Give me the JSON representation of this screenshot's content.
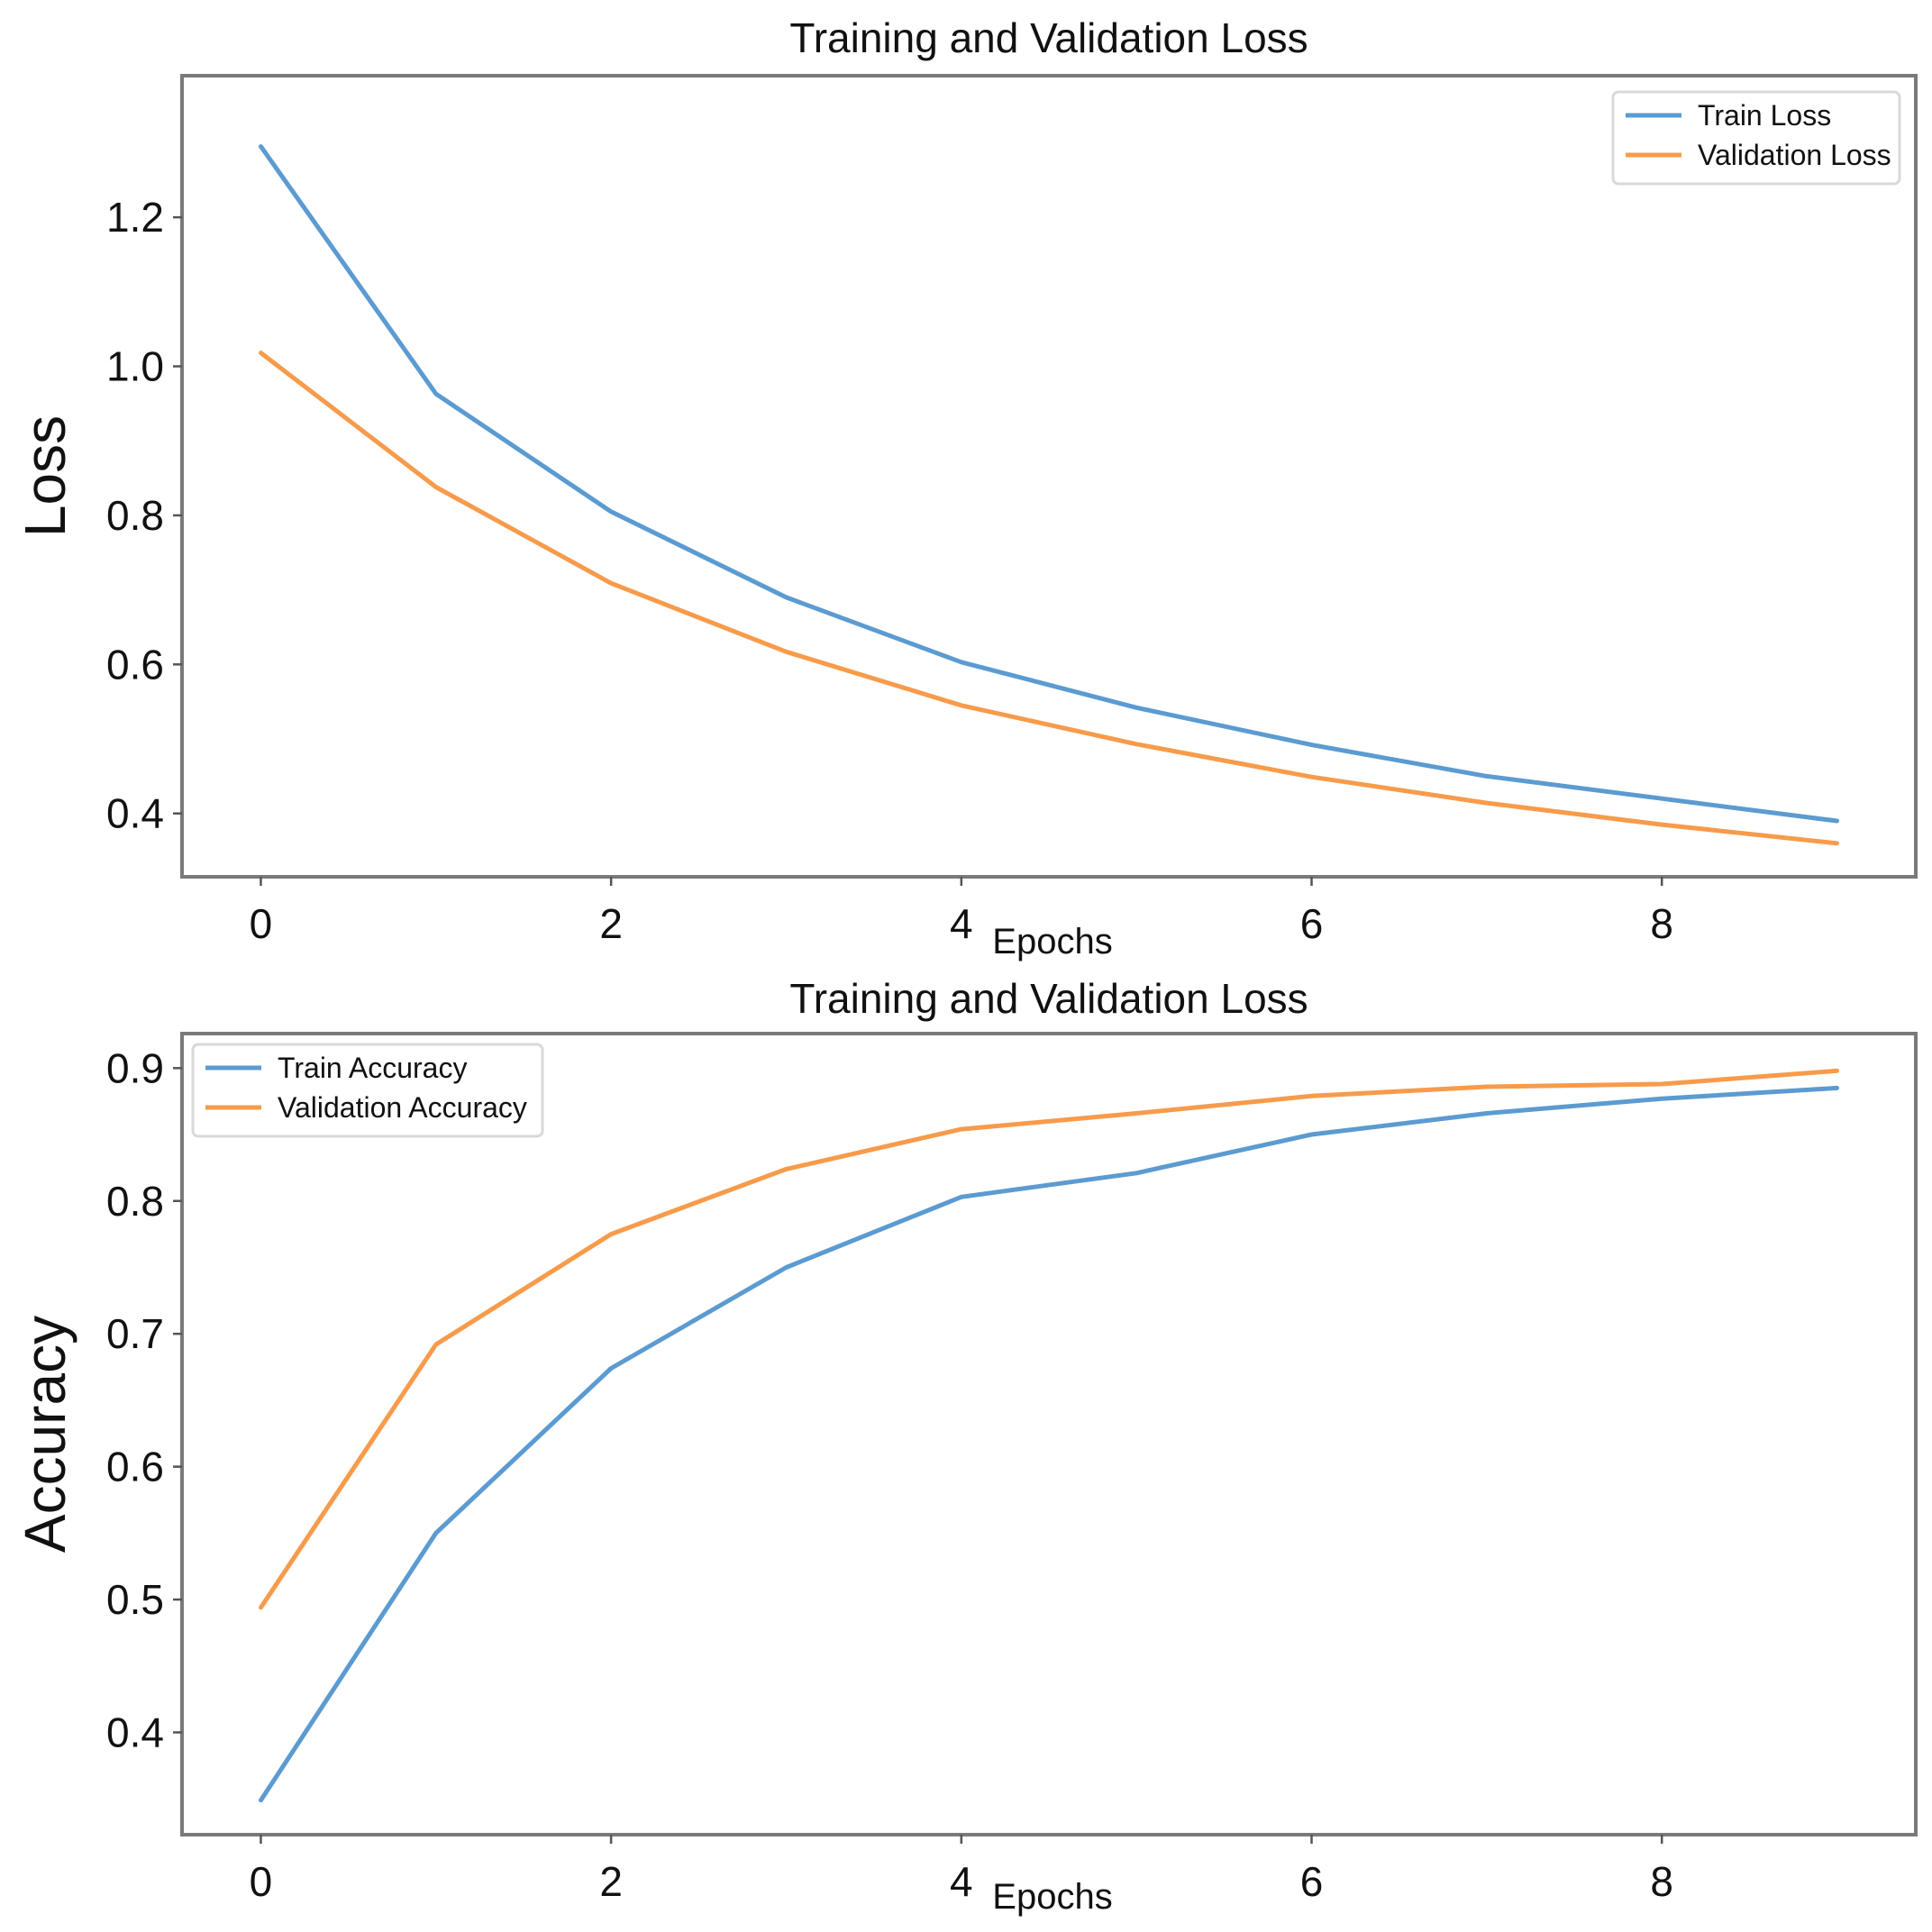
{
  "chart_data": [
    {
      "type": "line",
      "title": "Training and Validation Loss",
      "xlabel": "Epochs",
      "ylabel": "Loss",
      "x": [
        0,
        1,
        2,
        3,
        4,
        5,
        6,
        7,
        8,
        9
      ],
      "xlim": [
        -0.45,
        9.45
      ],
      "ylim": [
        0.315,
        1.39
      ],
      "xticks": [
        0,
        2,
        4,
        6,
        8
      ],
      "xtick_labels": [
        "0",
        "2",
        "4",
        "6",
        "8"
      ],
      "yticks": [
        0.4,
        0.6,
        0.8,
        1.0,
        1.2
      ],
      "ytick_labels": [
        "0.4",
        "0.6",
        "0.8",
        "1.0",
        "1.2"
      ],
      "legend_position": "top-right",
      "grid": false,
      "series": [
        {
          "name": "Train Loss",
          "color": "#5b9bd1",
          "values": [
            1.295,
            0.963,
            0.805,
            0.69,
            0.603,
            0.542,
            0.492,
            0.45,
            0.42,
            0.39
          ]
        },
        {
          "name": "Validation Loss",
          "color": "#f79b4b",
          "values": [
            1.018,
            0.838,
            0.709,
            0.617,
            0.545,
            0.493,
            0.449,
            0.414,
            0.385,
            0.36
          ]
        }
      ]
    },
    {
      "type": "line",
      "title": "Training and Validation Loss",
      "xlabel": "Epochs",
      "ylabel": "Accuracy",
      "x": [
        0,
        1,
        2,
        3,
        4,
        5,
        6,
        7,
        8,
        9
      ],
      "xlim": [
        -0.45,
        9.45
      ],
      "ylim": [
        0.323,
        0.926
      ],
      "xticks": [
        0,
        2,
        4,
        6,
        8
      ],
      "xtick_labels": [
        "0",
        "2",
        "4",
        "6",
        "8"
      ],
      "yticks": [
        0.4,
        0.5,
        0.6,
        0.7,
        0.8,
        0.9
      ],
      "ytick_labels": [
        "0.4",
        "0.5",
        "0.6",
        "0.7",
        "0.8",
        "0.9"
      ],
      "legend_position": "top-left",
      "grid": false,
      "series": [
        {
          "name": "Train Accuracy",
          "color": "#5b9bd1",
          "values": [
            0.349,
            0.55,
            0.674,
            0.75,
            0.803,
            0.821,
            0.85,
            0.866,
            0.877,
            0.885
          ]
        },
        {
          "name": "Validation Accuracy",
          "color": "#f79b4b",
          "values": [
            0.494,
            0.692,
            0.775,
            0.824,
            0.854,
            0.866,
            0.879,
            0.886,
            0.888,
            0.898
          ]
        }
      ]
    }
  ]
}
